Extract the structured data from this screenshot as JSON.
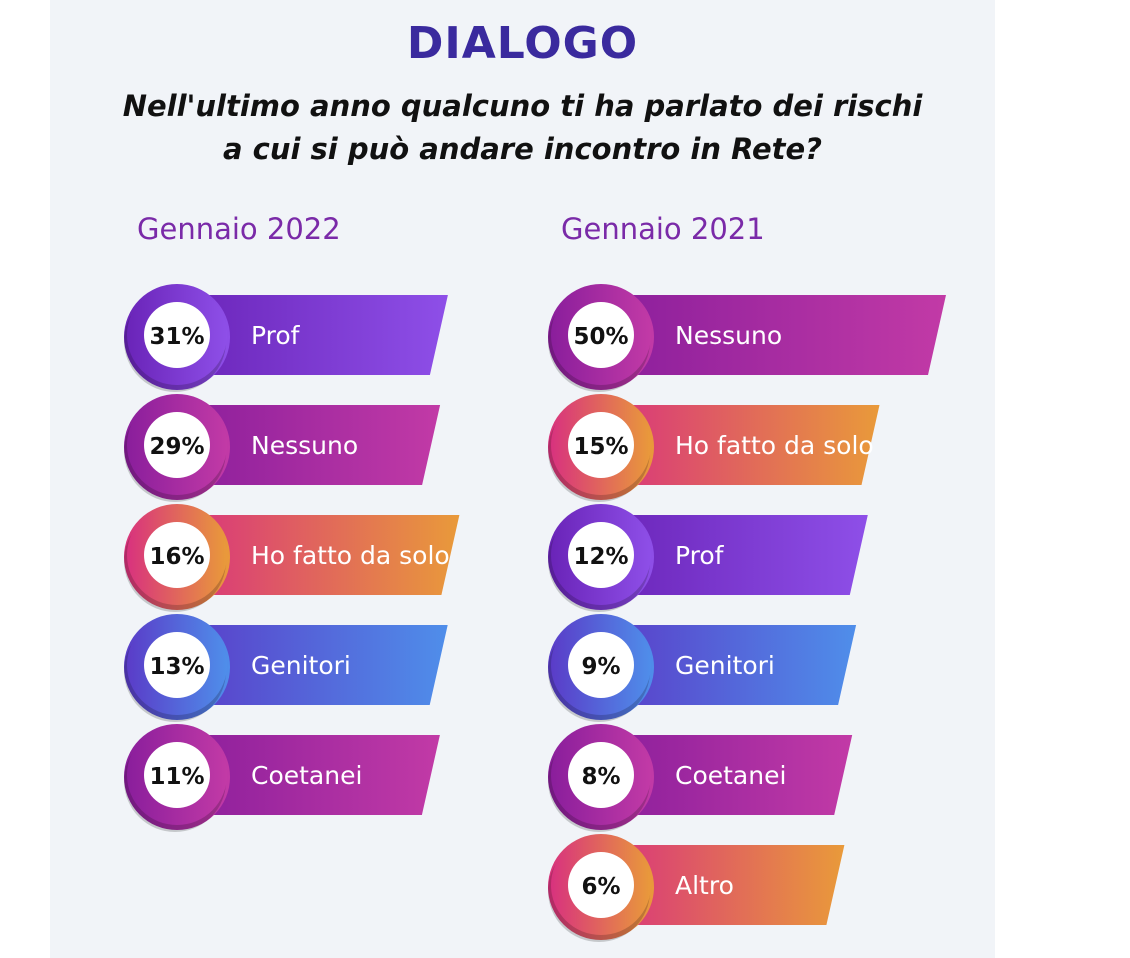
{
  "title": "DIALOGO",
  "question_line1": "Nell'ultimo anno qualcuno ti ha parlato dei rischi",
  "question_line2": "a cui si può andare incontro in Rete?",
  "colors": {
    "Prof": [
      "#6a24b8",
      "#8e4fe8"
    ],
    "Nessuno": [
      "#8a1e9c",
      "#c23aa6"
    ],
    "Ho fatto da solo": [
      "#d8327e",
      "#e99a3a"
    ],
    "Genitori": [
      "#5a3cc8",
      "#4f8eea"
    ],
    "Coetanei": [
      "#8a1e9c",
      "#c23aa6"
    ],
    "Altro": [
      "#d8327e",
      "#e99a3a"
    ]
  },
  "chart_data": [
    {
      "type": "bar",
      "title": "Gennaio 2022",
      "categories": [
        "Prof",
        "Nessuno",
        "Ho fatto da solo",
        "Genitori",
        "Coetanei"
      ],
      "values": [
        31,
        29,
        16,
        13,
        11
      ],
      "value_labels": [
        "31%",
        "29%",
        "16%",
        "13%",
        "11%"
      ]
    },
    {
      "type": "bar",
      "title": "Gennaio 2021",
      "categories": [
        "Nessuno",
        "Ho fatto da solo",
        "Prof",
        "Genitori",
        "Coetanei",
        "Altro"
      ],
      "values": [
        50,
        15,
        12,
        9,
        8,
        6
      ],
      "value_labels": [
        "50%",
        "15%",
        "12%",
        "9%",
        "8%",
        "6%"
      ]
    }
  ]
}
